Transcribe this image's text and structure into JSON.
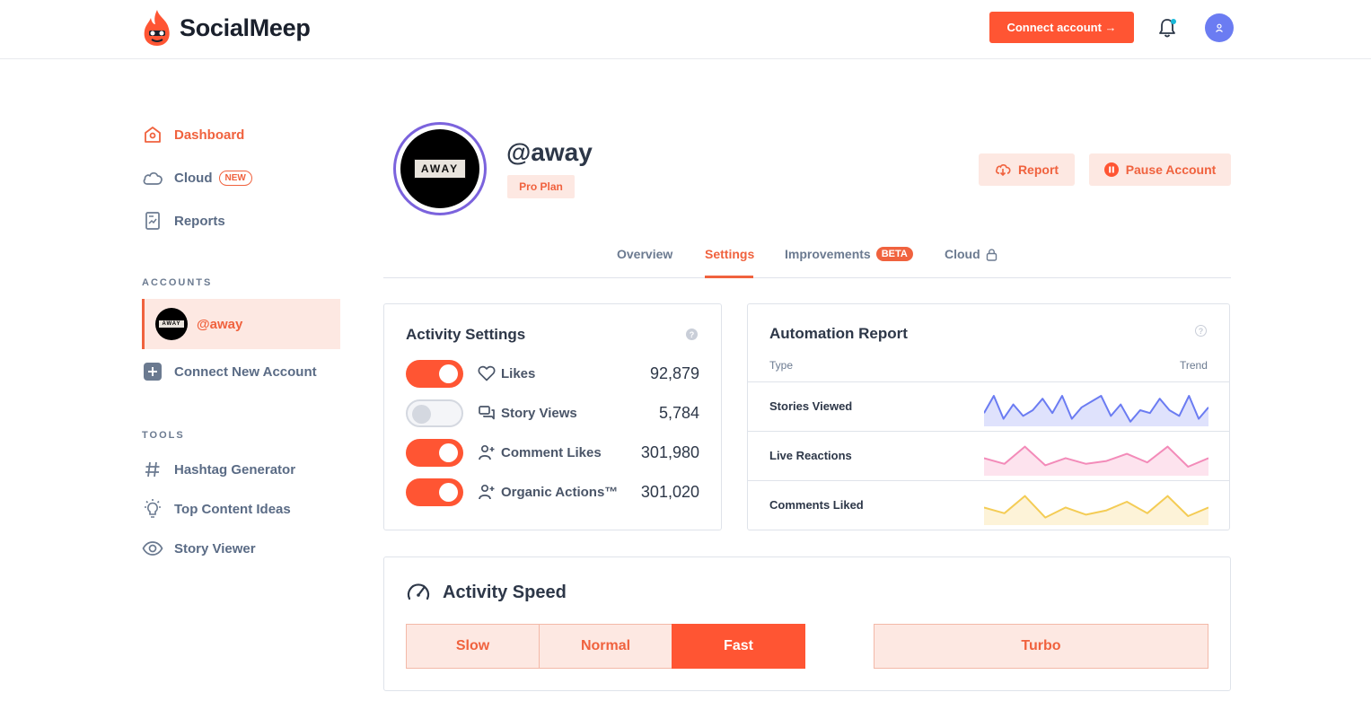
{
  "header": {
    "brand": "SocialMeep",
    "connect_label": "Connect account →"
  },
  "sidebar": {
    "nav": [
      {
        "label": "Dashboard",
        "icon": "home-icon"
      },
      {
        "label": "Cloud",
        "icon": "cloud-icon",
        "badge": "NEW"
      },
      {
        "label": "Reports",
        "icon": "report-icon"
      }
    ],
    "accounts_label": "ACCOUNTS",
    "account": "@away",
    "account_logo": "AWAY",
    "connect_new": "Connect New Account",
    "tools_label": "TOOLS",
    "tools": [
      {
        "label": "Hashtag Generator",
        "icon": "hashtag-icon"
      },
      {
        "label": "Top Content Ideas",
        "icon": "lightbulb-icon"
      },
      {
        "label": "Story Viewer",
        "icon": "eye-icon"
      }
    ]
  },
  "profile": {
    "handle": "@away",
    "logo_text": "AWAY",
    "plan": "Pro Plan",
    "report_label": "Report",
    "pause_label": "Pause Account"
  },
  "tabs": [
    {
      "label": "Overview"
    },
    {
      "label": "Settings",
      "active": true
    },
    {
      "label": "Improvements",
      "badge": "BETA"
    },
    {
      "label": "Cloud"
    }
  ],
  "activity": {
    "title": "Activity Settings",
    "help": "?",
    "rows": [
      {
        "label": "Likes",
        "value": "92,879",
        "on": true,
        "icon": "heart-icon"
      },
      {
        "label": "Story Views",
        "value": "5,784",
        "on": false,
        "icon": "chat-icon"
      },
      {
        "label": "Comment Likes",
        "value": "301,980",
        "on": true,
        "icon": "user-plus-icon"
      },
      {
        "label": "Organic Actions™",
        "value": "301,020",
        "on": true,
        "icon": "user-plus-icon"
      }
    ]
  },
  "report": {
    "title": "Automation Report",
    "help": "?",
    "col_type": "Type",
    "col_trend": "Trend",
    "rows": [
      {
        "label": "Stories Viewed",
        "color": "#6b7cf2",
        "fill": "#dfe2fc",
        "trend": [
          0.4,
          1.0,
          0.2,
          0.7,
          0.3,
          0.5,
          0.9,
          0.4,
          1.0,
          0.2,
          0.6,
          0.8,
          1.0,
          0.3,
          0.7,
          0.1,
          0.5,
          0.4,
          0.9,
          0.5,
          0.3,
          1.0,
          0.2,
          0.6
        ]
      },
      {
        "label": "Live Reactions",
        "color": "#f38bb9",
        "fill": "#fde3ee",
        "trend": [
          0.55,
          0.35,
          0.95,
          0.3,
          0.55,
          0.35,
          0.45,
          0.7,
          0.4,
          0.95,
          0.25,
          0.55
        ]
      },
      {
        "label": "Comments Liked",
        "color": "#f4cc55",
        "fill": "#fdf3d8",
        "trend": [
          0.55,
          0.35,
          0.95,
          0.2,
          0.55,
          0.3,
          0.45,
          0.75,
          0.35,
          0.95,
          0.25,
          0.55
        ]
      }
    ]
  },
  "speed": {
    "title": "Activity Speed",
    "options": [
      {
        "label": "Slow"
      },
      {
        "label": "Normal"
      },
      {
        "label": "Fast",
        "selected": true
      }
    ],
    "turbo": "Turbo"
  }
}
